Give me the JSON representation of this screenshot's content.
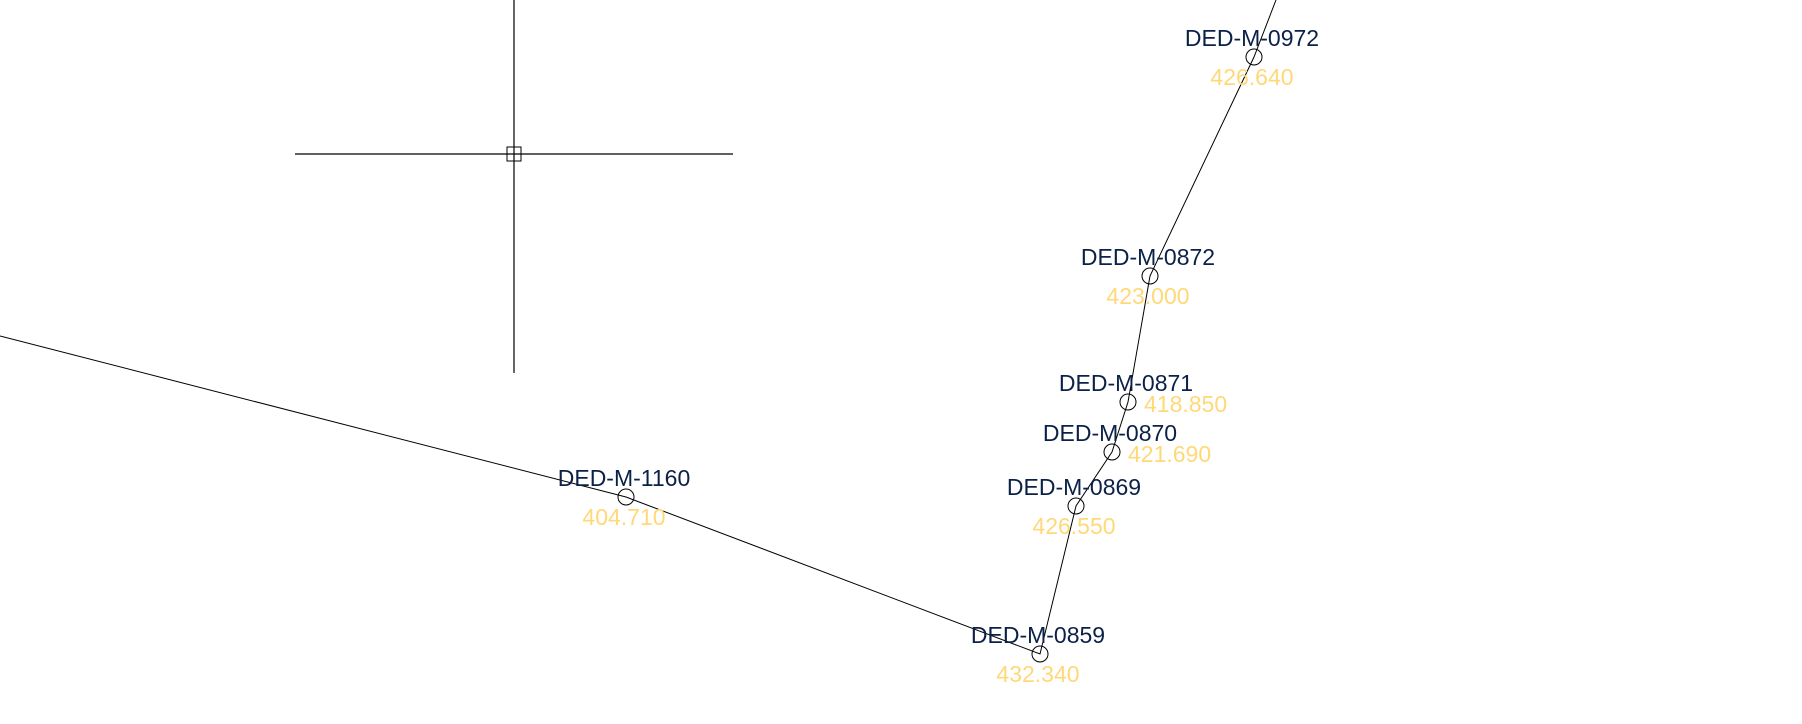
{
  "colors": {
    "background": "#ffffff",
    "line": "#000000",
    "label": "#0b2147",
    "elevation": "#ffd878"
  },
  "cursor": {
    "icon": "crosshair-cursor-icon"
  },
  "nodes": [
    {
      "id": "DED-M-1160",
      "elevation": "404.710"
    },
    {
      "id": "DED-M-0859",
      "elevation": "432.340"
    },
    {
      "id": "DED-M-0869",
      "elevation": "426.550"
    },
    {
      "id": "DED-M-0870",
      "elevation": "421.690"
    },
    {
      "id": "DED-M-0871",
      "elevation": "418.850"
    },
    {
      "id": "DED-M-0872",
      "elevation": "423.000"
    },
    {
      "id": "DED-M-0972",
      "elevation": "426.640"
    }
  ]
}
